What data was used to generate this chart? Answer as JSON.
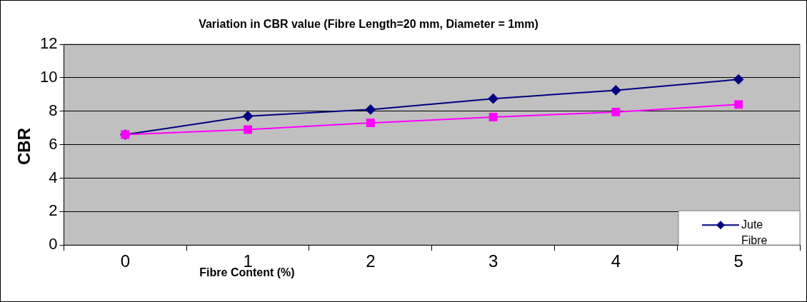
{
  "chart_data": {
    "type": "line",
    "title": "Variation in CBR value (Fibre Length=20 mm, Diameter = 1mm)",
    "xlabel": "Fibre Content (%)",
    "ylabel": "CBR",
    "categories": [
      "0",
      "1",
      "2",
      "3",
      "4",
      "5"
    ],
    "series": [
      {
        "name": "Jute Fibre",
        "color": "#000080",
        "marker": "diamond",
        "values": [
          6.6,
          7.7,
          8.1,
          8.75,
          9.25,
          9.9
        ]
      },
      {
        "color": "#ff00ff",
        "marker": "square",
        "values": [
          6.6,
          6.9,
          7.3,
          7.65,
          7.95,
          8.4
        ]
      }
    ],
    "ylim": [
      0,
      12
    ],
    "yticks": [
      0,
      2,
      4,
      6,
      8,
      10,
      12
    ],
    "grid": "y",
    "legend": "bottom right"
  }
}
